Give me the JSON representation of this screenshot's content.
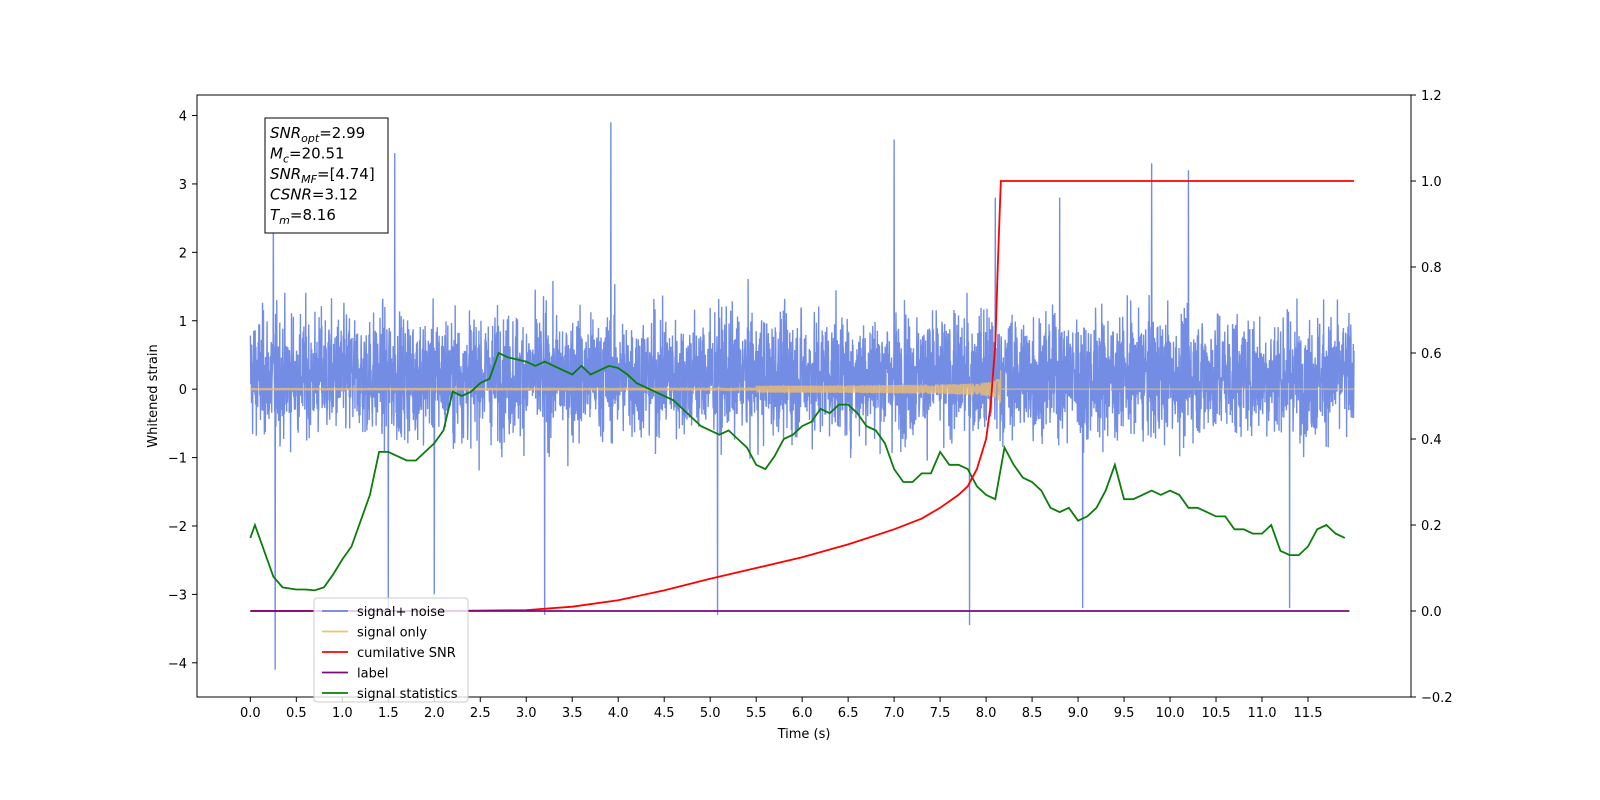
{
  "chart_data": {
    "type": "line",
    "xlabel": "Time (s)",
    "ylabel": "Whitened strain",
    "xlim": [
      -0.58,
      12.62
    ],
    "ylim": [
      -4.5,
      4.3
    ],
    "y2lim": [
      -0.2,
      1.2
    ],
    "x_ticks": [
      0.0,
      0.5,
      1.0,
      1.5,
      2.0,
      2.5,
      3.0,
      3.5,
      4.0,
      4.5,
      5.0,
      5.5,
      6.0,
      6.5,
      7.0,
      7.5,
      8.0,
      8.5,
      9.0,
      9.5,
      10.0,
      10.5,
      11.0,
      11.5
    ],
    "x_tick_labels": [
      "0.0",
      "0.5",
      "1.0",
      "1.5",
      "2.0",
      "2.5",
      "3.0",
      "3.5",
      "4.0",
      "4.5",
      "5.0",
      "5.5",
      "6.0",
      "6.5",
      "7.0",
      "7.5",
      "8.0",
      "8.5",
      "9.0",
      "9.5",
      "10.0",
      "10.5",
      "11.0",
      "11.5"
    ],
    "y_ticks": [
      4,
      3,
      2,
      1,
      0,
      -1,
      -2,
      -3,
      -4
    ],
    "y_tick_labels": [
      "4",
      "3",
      "2",
      "1",
      "0",
      "−1",
      "−2",
      "−3",
      "−4"
    ],
    "y2_ticks": [
      1.2,
      1.0,
      0.8,
      0.6,
      0.4,
      0.2,
      0.0,
      -0.2
    ],
    "y2_tick_labels": [
      "1.2",
      "1.0",
      "0.8",
      "0.6",
      "0.4",
      "0.2",
      "0.0",
      "−0.2"
    ],
    "legend": {
      "placement": "lower-left",
      "entries": [
        {
          "label": "signal+ noise",
          "color": "#6b87e4"
        },
        {
          "label": "signal only",
          "color": "#f4c06a"
        },
        {
          "label": "cumilative SNR",
          "color": "#ff0000"
        },
        {
          "label": "label",
          "color": "#7b0a7b"
        },
        {
          "label": "signal statistics",
          "color": "#0a7d0a"
        }
      ]
    },
    "info_box": {
      "lines": [
        {
          "sym": "SNR",
          "sub": "opt",
          "val": "=2.99"
        },
        {
          "sym": "M",
          "sub": "c",
          "val": "=20.51"
        },
        {
          "sym": "SNR",
          "sub": "MF",
          "val": "=[4.74]"
        },
        {
          "sym": "CSNR",
          "sub": "",
          "val": "=3.12"
        },
        {
          "sym": "T",
          "sub": "m",
          "val": "=8.16"
        }
      ]
    },
    "series": [
      {
        "name": "signal+ noise",
        "axis": "left",
        "color": "#6b87e4",
        "x_range": [
          0.0,
          12.0
        ],
        "noise_band": [
          -1.5,
          2.0
        ],
        "spikes": [
          [
            0.27,
            -4.1
          ],
          [
            0.25,
            2.5
          ],
          [
            1.5,
            -3.2
          ],
          [
            1.57,
            3.45
          ],
          [
            2.0,
            -3.0
          ],
          [
            3.2,
            -3.3
          ],
          [
            3.92,
            3.9
          ],
          [
            5.08,
            -3.3
          ],
          [
            7.0,
            3.65
          ],
          [
            7.82,
            -3.45
          ],
          [
            8.1,
            2.8
          ],
          [
            8.8,
            2.8
          ],
          [
            9.05,
            -3.2
          ],
          [
            9.8,
            3.3
          ],
          [
            10.2,
            3.2
          ],
          [
            11.3,
            -3.2
          ]
        ]
      },
      {
        "name": "signal only",
        "axis": "left",
        "color": "#f4c06a",
        "x_range": [
          0.0,
          12.0
        ],
        "chirp_merger_time": 8.16,
        "chirp_peak_amplitude": 0.55
      },
      {
        "name": "cumilative SNR",
        "axis": "right",
        "color": "#ff0000",
        "x": [
          0.0,
          2.0,
          3.0,
          3.5,
          4.0,
          4.5,
          5.0,
          5.5,
          6.0,
          6.5,
          7.0,
          7.3,
          7.5,
          7.7,
          7.8,
          7.9,
          8.0,
          8.05,
          8.1,
          8.13,
          8.16,
          8.2,
          12.0
        ],
        "y": [
          0.0,
          0.0,
          0.002,
          0.01,
          0.025,
          0.048,
          0.075,
          0.1,
          0.125,
          0.155,
          0.19,
          0.215,
          0.24,
          0.27,
          0.29,
          0.33,
          0.4,
          0.48,
          0.62,
          0.82,
          1.0,
          1.0,
          1.0
        ]
      },
      {
        "name": "label",
        "axis": "right",
        "color": "#7b0a7b",
        "x": [
          0.0,
          11.95
        ],
        "y": [
          0.0,
          0.0
        ]
      },
      {
        "name": "signal statistics",
        "axis": "right",
        "color": "#0a7d0a",
        "x": [
          0.0,
          0.05,
          0.15,
          0.25,
          0.35,
          0.5,
          0.6,
          0.7,
          0.8,
          0.9,
          1.0,
          1.1,
          1.2,
          1.3,
          1.4,
          1.5,
          1.6,
          1.7,
          1.8,
          1.9,
          2.0,
          2.1,
          2.2,
          2.3,
          2.4,
          2.5,
          2.6,
          2.7,
          2.8,
          3.0,
          3.1,
          3.2,
          3.3,
          3.4,
          3.5,
          3.6,
          3.7,
          3.8,
          3.9,
          4.0,
          4.1,
          4.2,
          4.3,
          4.4,
          4.5,
          4.6,
          4.7,
          4.8,
          4.9,
          5.0,
          5.1,
          5.2,
          5.3,
          5.4,
          5.5,
          5.6,
          5.7,
          5.8,
          5.9,
          6.0,
          6.1,
          6.2,
          6.3,
          6.4,
          6.5,
          6.6,
          6.7,
          6.8,
          6.9,
          7.0,
          7.1,
          7.2,
          7.3,
          7.4,
          7.5,
          7.6,
          7.7,
          7.8,
          7.9,
          8.0,
          8.1,
          8.2,
          8.3,
          8.4,
          8.5,
          8.6,
          8.7,
          8.8,
          8.9,
          9.0,
          9.1,
          9.2,
          9.3,
          9.4,
          9.5,
          9.6,
          9.7,
          9.8,
          9.9,
          10.0,
          10.1,
          10.2,
          10.3,
          10.4,
          10.5,
          10.6,
          10.7,
          10.8,
          10.9,
          11.0,
          11.1,
          11.2,
          11.3,
          11.4,
          11.5,
          11.6,
          11.7,
          11.8,
          11.9
        ],
        "y": [
          0.17,
          0.2,
          0.14,
          0.08,
          0.055,
          0.05,
          0.05,
          0.048,
          0.055,
          0.085,
          0.12,
          0.15,
          0.21,
          0.27,
          0.37,
          0.37,
          0.36,
          0.35,
          0.35,
          0.37,
          0.39,
          0.42,
          0.51,
          0.5,
          0.51,
          0.53,
          0.54,
          0.6,
          0.59,
          0.58,
          0.57,
          0.58,
          0.57,
          0.56,
          0.55,
          0.57,
          0.55,
          0.56,
          0.57,
          0.565,
          0.55,
          0.53,
          0.52,
          0.51,
          0.5,
          0.49,
          0.47,
          0.45,
          0.43,
          0.42,
          0.41,
          0.42,
          0.4,
          0.38,
          0.34,
          0.33,
          0.36,
          0.4,
          0.41,
          0.43,
          0.44,
          0.47,
          0.46,
          0.48,
          0.48,
          0.46,
          0.43,
          0.42,
          0.39,
          0.33,
          0.3,
          0.3,
          0.32,
          0.32,
          0.37,
          0.34,
          0.34,
          0.33,
          0.29,
          0.27,
          0.26,
          0.38,
          0.34,
          0.31,
          0.3,
          0.28,
          0.24,
          0.23,
          0.24,
          0.21,
          0.22,
          0.24,
          0.28,
          0.34,
          0.26,
          0.26,
          0.27,
          0.28,
          0.27,
          0.28,
          0.27,
          0.24,
          0.24,
          0.23,
          0.22,
          0.22,
          0.19,
          0.19,
          0.18,
          0.18,
          0.2,
          0.14,
          0.13,
          0.13,
          0.15,
          0.19,
          0.2,
          0.18,
          0.17
        ]
      }
    ]
  }
}
